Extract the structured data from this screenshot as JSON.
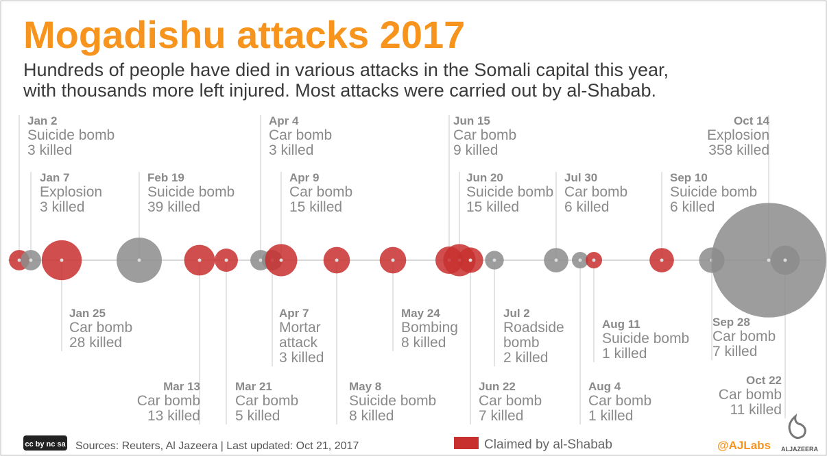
{
  "header": {
    "title": "Mogadishu attacks 2017",
    "subtitle": [
      "Hundreds of people have died in various attacks in the Somali capital this year,",
      "with thousands more left injured. Most attacks were carried out by al-Shabab."
    ]
  },
  "events": [
    {
      "date": "Jan 2",
      "type": [
        "Suicide bomb"
      ],
      "deaths": 3,
      "label": "3 killed",
      "claimed": true
    },
    {
      "date": "Jan 7",
      "type": [
        "Explosion"
      ],
      "deaths": 3,
      "label": "3 killed",
      "claimed": false
    },
    {
      "date": "Jan 25",
      "type": [
        "Car bomb"
      ],
      "deaths": 28,
      "label": "28 killed",
      "claimed": true
    },
    {
      "date": "Feb 19",
      "type": [
        "Suicide bomb"
      ],
      "deaths": 39,
      "label": "39 killed",
      "claimed": false
    },
    {
      "date": "Mar 13",
      "type": [
        "Car bomb"
      ],
      "deaths": 13,
      "label": "13 killed",
      "claimed": true
    },
    {
      "date": "Mar 21",
      "type": [
        "Car bomb"
      ],
      "deaths": 5,
      "label": "5 killed",
      "claimed": true
    },
    {
      "date": "Apr 4",
      "type": [
        "Car bomb"
      ],
      "deaths": 3,
      "label": "3 killed",
      "claimed": false
    },
    {
      "date": "Apr 7",
      "type": [
        "Mortar",
        "attack"
      ],
      "deaths": 3,
      "label": "3 killed",
      "claimed": false
    },
    {
      "date": "Apr 9",
      "type": [
        "Car bomb"
      ],
      "deaths": 15,
      "label": "15 killed",
      "claimed": true
    },
    {
      "date": "May 8",
      "type": [
        "Suicide bomb"
      ],
      "deaths": 8,
      "label": "8 killed",
      "claimed": true
    },
    {
      "date": "May 24",
      "type": [
        "Bombing"
      ],
      "deaths": 8,
      "label": "8 killed",
      "claimed": true
    },
    {
      "date": "Jun 15",
      "type": [
        "Car bomb"
      ],
      "deaths": 9,
      "label": "9 killed",
      "claimed": true
    },
    {
      "date": "Jun 20",
      "type": [
        "Suicide bomb"
      ],
      "deaths": 15,
      "label": "15 killed",
      "claimed": true
    },
    {
      "date": "Jun 22",
      "type": [
        "Car bomb"
      ],
      "deaths": 7,
      "label": "7 killed",
      "claimed": true
    },
    {
      "date": "Jul 2",
      "type": [
        "Roadside",
        "bomb"
      ],
      "deaths": 2,
      "label": "2 killed",
      "claimed": false
    },
    {
      "date": "Jul 30",
      "type": [
        "Car bomb"
      ],
      "deaths": 6,
      "label": "6 killed",
      "claimed": false
    },
    {
      "date": "Aug 4",
      "type": [
        "Car bomb"
      ],
      "deaths": 1,
      "label": "1 killed",
      "claimed": false
    },
    {
      "date": "Aug 11",
      "type": [
        "Suicide bomb"
      ],
      "deaths": 1,
      "label": "1 killed",
      "claimed": true
    },
    {
      "date": "Sep 10",
      "type": [
        "Suicide bomb"
      ],
      "deaths": 6,
      "label": "6 killed",
      "claimed": true
    },
    {
      "date": "Sep 28",
      "type": [
        "Car bomb"
      ],
      "deaths": 7,
      "label": "7 killed",
      "claimed": false
    },
    {
      "date": "Oct 14",
      "type": [
        "Explosion"
      ],
      "deaths": 358,
      "label": "358 killed",
      "claimed": false
    },
    {
      "date": "Oct 22",
      "type": [
        "Car bomb"
      ],
      "deaths": 11,
      "label": "11 killed",
      "claimed": false
    }
  ],
  "colors": {
    "claimed": "#c8302f",
    "other": "#8c8c8c"
  },
  "legend": "Claimed by al-Shabab",
  "footer": {
    "license": "cc by nc sa",
    "sources": "Sources: Reuters, Al Jazeera | Last updated: Oct 21, 2017",
    "handle": "@AJLabs",
    "logo": "ALJAZEERA"
  }
}
